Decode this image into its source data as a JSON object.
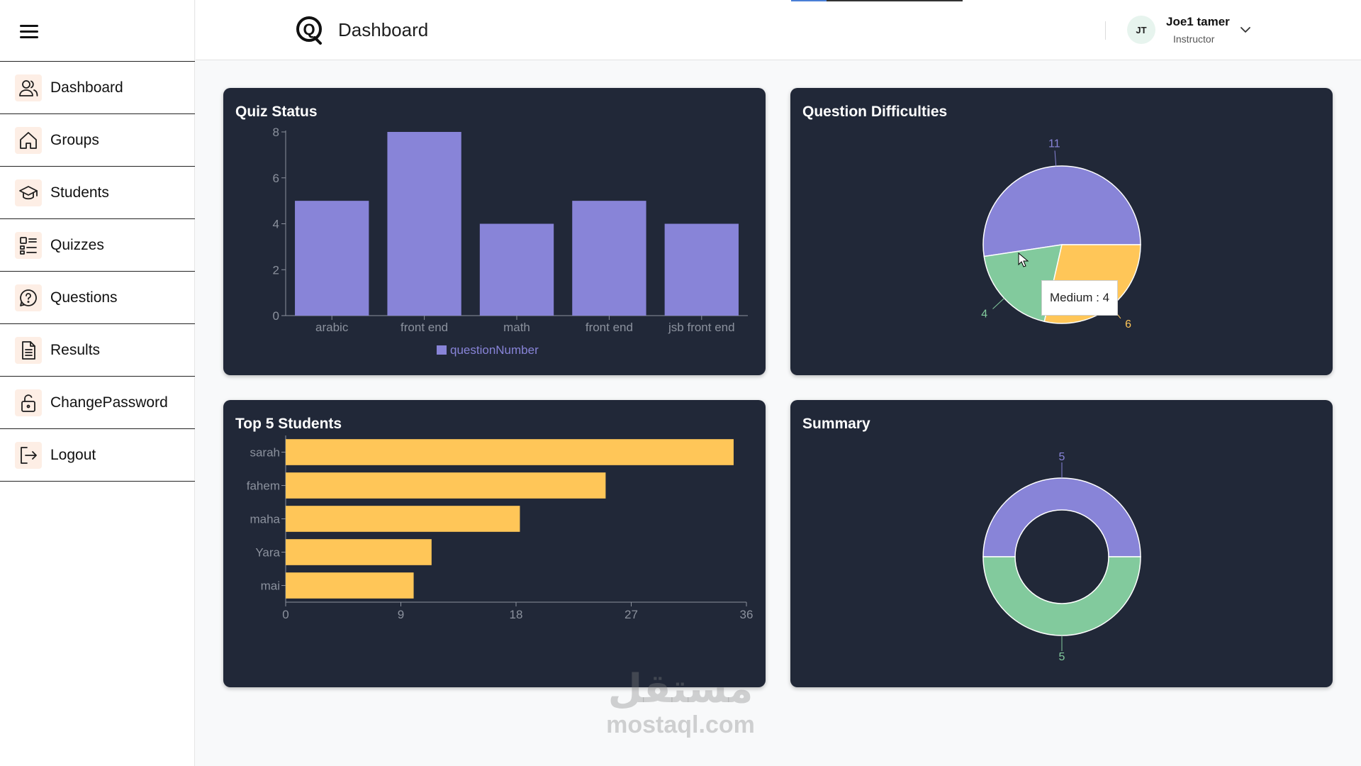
{
  "sidebar": {
    "items": [
      {
        "label": "Dashboard",
        "icon": "users-icon"
      },
      {
        "label": "Groups",
        "icon": "home-icon"
      },
      {
        "label": "Students",
        "icon": "graduation-cap-icon"
      },
      {
        "label": "Quizzes",
        "icon": "list-icon"
      },
      {
        "label": "Questions",
        "icon": "question-bubble-icon"
      },
      {
        "label": "Results",
        "icon": "document-icon"
      },
      {
        "label": "ChangePassword",
        "icon": "unlock-icon"
      },
      {
        "label": "Logout",
        "icon": "logout-icon"
      }
    ]
  },
  "header": {
    "title": "Dashboard",
    "user": {
      "initials": "JT",
      "name": "Joe1 tamer",
      "role": "Instructor"
    }
  },
  "colors": {
    "card_bg": "#212838",
    "purple": "#8884d8",
    "green": "#82ca9d",
    "yellow": "#ffc658",
    "axis": "#8b919d"
  },
  "quiz_status": {
    "title": "Quiz Status",
    "tooltip": null
  },
  "difficulties": {
    "title": "Question Difficulties",
    "tooltip": "Medium : 4"
  },
  "top_students": {
    "title": "Top 5 Students"
  },
  "summary": {
    "title": "Summary"
  },
  "chart_data": [
    {
      "type": "bar",
      "orientation": "vertical",
      "categories": [
        "arabic",
        "front end",
        "math",
        "front end",
        "jsb front end"
      ],
      "series": [
        {
          "name": "questionNumber",
          "values": [
            5,
            8,
            4,
            5,
            4
          ],
          "color": "#8884d8"
        }
      ],
      "ylim": [
        0,
        8
      ],
      "yticks": [
        0,
        2,
        4,
        6,
        8
      ],
      "legend": "bottom"
    },
    {
      "type": "pie",
      "labels": [
        "",
        "Medium",
        ""
      ],
      "values": [
        11,
        4,
        6
      ],
      "colors": [
        "#8884d8",
        "#82ca9d",
        "#ffc658"
      ]
    },
    {
      "type": "bar",
      "orientation": "horizontal",
      "categories": [
        "sarah",
        "fahem",
        "maha",
        "Yara",
        "mai"
      ],
      "values": [
        35,
        25,
        18.3,
        11.4,
        10
      ],
      "color": "#ffc658",
      "xlim": [
        0,
        36
      ],
      "xticks": [
        0,
        9,
        18,
        27,
        36
      ]
    },
    {
      "type": "pie",
      "variant": "donut",
      "values": [
        5,
        5
      ],
      "colors": [
        "#8884d8",
        "#82ca9d"
      ]
    }
  ],
  "watermark": {
    "arabic": "مستقل",
    "latin": "mostaql.com"
  }
}
